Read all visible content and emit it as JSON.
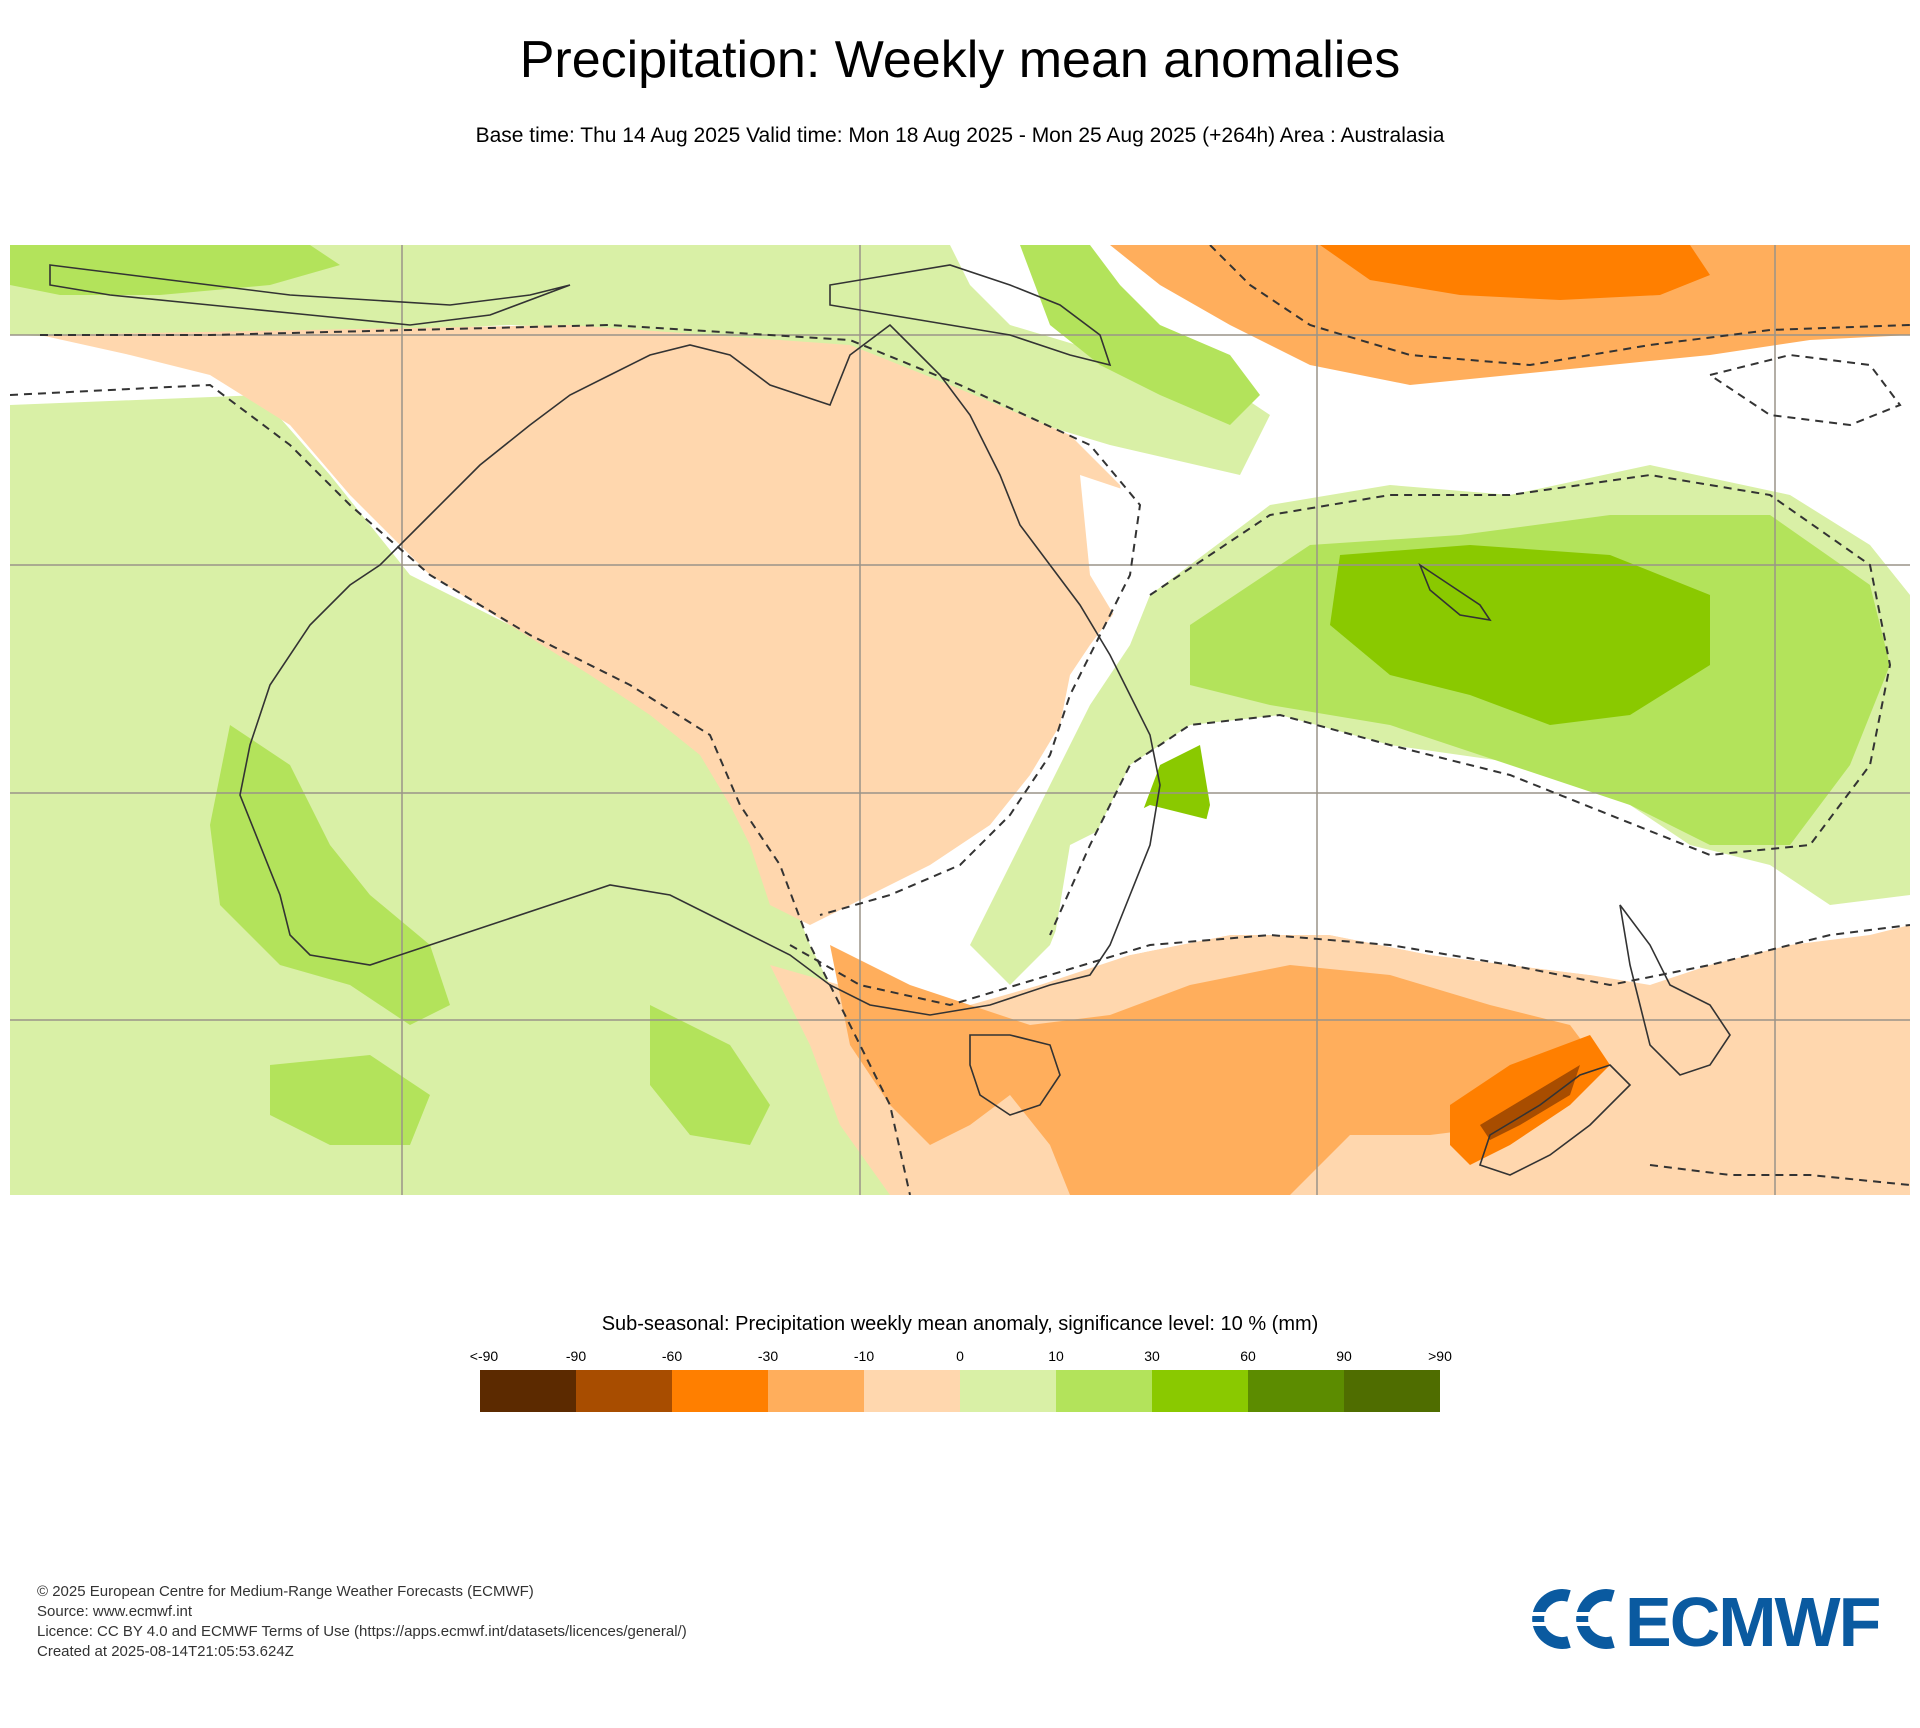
{
  "header": {
    "title": "Precipitation: Weekly mean anomalies",
    "subtitle": "Base time: Thu 14 Aug 2025 Valid time: Mon 18 Aug 2025 - Mon 25 Aug 2025 (+264h) Area : Australasia"
  },
  "map": {
    "area": "Australasia",
    "colors": {
      "ocean_neutral": "#ffffff",
      "coastline": "#333333",
      "gridline": "#9a9488",
      "significance_contour": "#333333"
    }
  },
  "legend": {
    "title": "Sub-seasonal: Precipitation weekly mean anomaly, significance level: 10 % (mm)",
    "labels": [
      "<-90",
      "-90",
      "-60",
      "-30",
      "-10",
      "0",
      "10",
      "30",
      "60",
      "90",
      ">90"
    ],
    "colors": [
      "#5c2a00",
      "#a84d00",
      "#ff7f00",
      "#ffae5c",
      "#ffd7ae",
      "#d9f0a6",
      "#b3e35b",
      "#8ac900",
      "#5c8c00",
      "#4f6d00"
    ]
  },
  "footer": {
    "lines": [
      "© 2025 European Centre for Medium-Range Weather Forecasts (ECMWF)",
      "Source: www.ecmwf.int",
      "Licence: CC BY 4.0 and ECMWF Terms of Use (https://apps.ecmwf.int/datasets/licences/general/)",
      "Created at 2025-08-14T21:05:53.624Z"
    ]
  },
  "logo": {
    "text": "ECMWF",
    "color": "#0a5aa0"
  }
}
